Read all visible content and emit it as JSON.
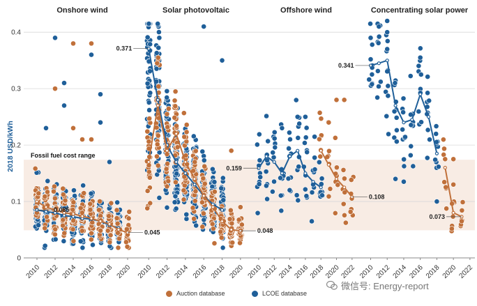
{
  "y_axis_label": "2018 USD/kWh",
  "fossil_label": "Fossil fuel cost range",
  "fossil_range": [
    0.049,
    0.174
  ],
  "colors": {
    "auction": "#c0703a",
    "lcoe": "#1f5f99",
    "fossil_band": "#f8ece4"
  },
  "legend": {
    "auction": "Auction database",
    "lcoe": "LCOE database"
  },
  "watermark": "微信号: Energy-report",
  "chart_data": [
    {
      "type": "scatter",
      "title": "Onshore wind",
      "ylabel": "2018 USD/kWh",
      "ylim": [
        0,
        0.42
      ],
      "yticks": [
        0,
        0.1,
        0.2,
        0.3,
        0.4
      ],
      "xlim": [
        2009,
        2021
      ],
      "xticks": [
        2010,
        2012,
        2014,
        2016,
        2018,
        2020
      ],
      "lcoe_range": [
        2010,
        2019
      ],
      "auction_range": [
        2010,
        2020
      ],
      "lcoe_line": {
        "x": [
          2010,
          2011,
          2012,
          2013,
          2014,
          2015,
          2016,
          2017,
          2018,
          2019
        ],
        "y": [
          0.085,
          0.082,
          0.08,
          0.075,
          0.073,
          0.07,
          0.069,
          0.065,
          0.058,
          0.053
        ]
      },
      "auction_line": {
        "x": [
          2010,
          2011,
          2012,
          2013,
          2014,
          2015,
          2016,
          2017,
          2018,
          2019,
          2020
        ],
        "y": [
          0.1,
          0.09,
          0.085,
          0.08,
          0.078,
          0.074,
          0.07,
          0.065,
          0.06,
          0.05,
          0.045
        ]
      },
      "outliers": [
        {
          "x": 2012,
          "y": 0.39,
          "s": "lcoe"
        },
        {
          "x": 2013,
          "y": 0.31,
          "s": "lcoe"
        },
        {
          "x": 2012,
          "y": 0.3,
          "s": "auction"
        },
        {
          "x": 2013,
          "y": 0.27,
          "s": "lcoe"
        },
        {
          "x": 2014,
          "y": 0.38,
          "s": "auction"
        },
        {
          "x": 2016,
          "y": 0.38,
          "s": "auction"
        },
        {
          "x": 2016,
          "y": 0.36,
          "s": "lcoe"
        },
        {
          "x": 2017,
          "y": 0.29,
          "s": "lcoe"
        },
        {
          "x": 2014,
          "y": 0.23,
          "s": "auction"
        },
        {
          "x": 2015,
          "y": 0.21,
          "s": "auction"
        },
        {
          "x": 2016,
          "y": 0.21,
          "s": "auction"
        },
        {
          "x": 2011,
          "y": 0.23,
          "s": "lcoe"
        },
        {
          "x": 2017,
          "y": 0.24,
          "s": "lcoe"
        },
        {
          "x": 2018,
          "y": 0.17,
          "s": "lcoe"
        }
      ],
      "annotations": [
        {
          "x": 2010,
          "y": 0.085,
          "text": "0.085",
          "side": "right"
        },
        {
          "x": 2020,
          "y": 0.045,
          "text": "0.045",
          "side": "right"
        }
      ]
    },
    {
      "type": "scatter",
      "title": "Solar photovoltaic",
      "ylabel": "2018 USD/kWh",
      "ylim": [
        0,
        0.42
      ],
      "yticks": [
        0,
        0.1,
        0.2,
        0.3,
        0.4
      ],
      "xlim": [
        2009.3,
        2021
      ],
      "xticks": [
        2010,
        2012,
        2014,
        2016,
        2018,
        2020
      ],
      "lcoe_range": [
        2010,
        2018
      ],
      "auction_range": [
        2010,
        2020
      ],
      "lcoe_line": {
        "x": [
          2010,
          2011,
          2012,
          2013,
          2014,
          2015,
          2016,
          2017,
          2018
        ],
        "y": [
          0.371,
          0.28,
          0.2,
          0.17,
          0.15,
          0.13,
          0.11,
          0.095,
          0.085
        ]
      },
      "auction_line": {
        "x": [
          2010,
          2011,
          2012,
          2013,
          2014,
          2015,
          2016,
          2017,
          2018,
          2019,
          2020
        ],
        "y": [
          0.17,
          0.27,
          0.19,
          0.22,
          0.17,
          0.14,
          0.11,
          0.09,
          0.065,
          0.05,
          0.048
        ]
      },
      "outliers": [
        {
          "x": 2016,
          "y": 0.41,
          "s": "lcoe"
        },
        {
          "x": 2018,
          "y": 0.35,
          "s": "lcoe"
        },
        {
          "x": 2019,
          "y": 0.19,
          "s": "auction"
        },
        {
          "x": 2020,
          "y": 0.09,
          "s": "auction"
        }
      ],
      "annotations": [
        {
          "x": 2010,
          "y": 0.371,
          "text": "0.371",
          "side": "left"
        },
        {
          "x": 2020,
          "y": 0.048,
          "text": "0.048",
          "side": "right"
        }
      ]
    },
    {
      "type": "scatter",
      "title": "Offshore wind",
      "ylabel": "2018 USD/kWh",
      "ylim": [
        0,
        0.42
      ],
      "yticks": [
        0,
        0.1,
        0.2,
        0.3,
        0.4
      ],
      "xlim": [
        2009.2,
        2023
      ],
      "xticks": [
        2010,
        2012,
        2014,
        2016,
        2018,
        2020,
        2022
      ],
      "lcoe_range": [
        2010,
        2018
      ],
      "auction_range": [
        2018,
        2022
      ],
      "lcoe_line": {
        "x": [
          2010,
          2011,
          2012,
          2013,
          2014,
          2015,
          2016,
          2017,
          2018
        ],
        "y": [
          0.159,
          0.18,
          0.17,
          0.15,
          0.18,
          0.19,
          0.15,
          0.135,
          0.125
        ]
      },
      "auction_line": {
        "x": [
          2018,
          2019,
          2020,
          2021,
          2022
        ],
        "y": [
          0.19,
          0.165,
          0.14,
          0.125,
          0.108
        ]
      },
      "outliers": [
        {
          "x": 2020,
          "y": 0.28,
          "s": "auction"
        },
        {
          "x": 2021,
          "y": 0.28,
          "s": "auction"
        },
        {
          "x": 2019,
          "y": 0.24,
          "s": "auction"
        },
        {
          "x": 2015,
          "y": 0.25,
          "s": "lcoe"
        },
        {
          "x": 2016,
          "y": 0.25,
          "s": "lcoe"
        },
        {
          "x": 2013,
          "y": 0.23,
          "s": "lcoe"
        }
      ],
      "annotations": [
        {
          "x": 2010,
          "y": 0.159,
          "text": "0.159",
          "side": "left"
        },
        {
          "x": 2022,
          "y": 0.108,
          "text": "0.108",
          "side": "right"
        }
      ]
    },
    {
      "type": "scatter",
      "title": "Concentrating solar power",
      "ylabel": "2018 USD/kWh",
      "ylim": [
        0,
        0.42
      ],
      "yticks": [
        0,
        0.1,
        0.2,
        0.3,
        0.4
      ],
      "xlim": [
        2009.2,
        2022.6
      ],
      "xticks": [
        2010,
        2012,
        2014,
        2016,
        2018,
        2020,
        2022
      ],
      "lcoe_range": [
        2010,
        2018
      ],
      "auction_range": [
        2019,
        2021
      ],
      "lcoe_line": {
        "x": [
          2010,
          2011,
          2012,
          2013,
          2014,
          2015,
          2016,
          2017,
          2018
        ],
        "y": [
          0.341,
          0.345,
          0.35,
          0.27,
          0.24,
          0.245,
          0.29,
          0.25,
          0.185
        ]
      },
      "auction_line": {
        "x": [
          2019,
          2020,
          2021
        ],
        "y": [
          0.16,
          0.08,
          0.073
        ]
      },
      "outliers": [
        {
          "x": 2012,
          "y": 0.42,
          "s": "lcoe"
        },
        {
          "x": 2011,
          "y": 0.41,
          "s": "lcoe"
        },
        {
          "x": 2012,
          "y": 0.4,
          "s": "lcoe"
        },
        {
          "x": 2010,
          "y": 0.39,
          "s": "lcoe"
        },
        {
          "x": 2012,
          "y": 0.37,
          "s": "lcoe"
        },
        {
          "x": 2016,
          "y": 0.355,
          "s": "lcoe"
        },
        {
          "x": 2013,
          "y": 0.14,
          "s": "lcoe"
        },
        {
          "x": 2014,
          "y": 0.135,
          "s": "lcoe"
        },
        {
          "x": 2018,
          "y": 0.1,
          "s": "lcoe"
        },
        {
          "x": 2019,
          "y": 0.175,
          "s": "auction"
        },
        {
          "x": 2020,
          "y": 0.175,
          "s": "auction"
        },
        {
          "x": 2020,
          "y": 0.13,
          "s": "auction"
        },
        {
          "x": 2021,
          "y": 0.065,
          "s": "auction"
        }
      ],
      "annotations": [
        {
          "x": 2010,
          "y": 0.341,
          "text": "0.341",
          "side": "left"
        },
        {
          "x": 2021,
          "y": 0.073,
          "text": "0.073",
          "side": "left"
        }
      ]
    }
  ]
}
